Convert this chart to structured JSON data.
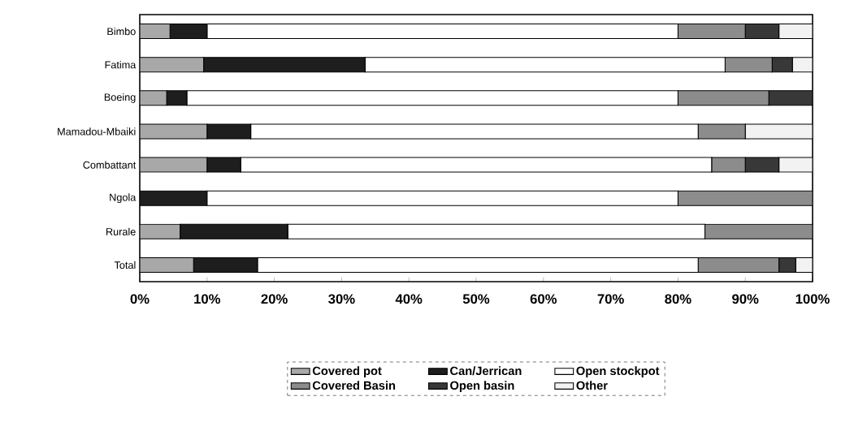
{
  "chart_data": {
    "type": "bar",
    "orientation": "horizontal",
    "stacked": true,
    "categories": [
      "Bimbo",
      "Fatima",
      "Boeing",
      "Mamadou-Mbaiki",
      "Combattant",
      "Ngola",
      "Rurale",
      "Total"
    ],
    "series": [
      {
        "name": "Covered pot",
        "color": "#a8a8a8",
        "values": [
          4.5,
          9.5,
          4,
          10,
          10,
          0,
          6,
          8
        ]
      },
      {
        "name": "Can/Jerrican",
        "color": "#1e1e1e",
        "values": [
          5.5,
          24,
          3,
          6.5,
          5,
          10,
          16,
          9.5
        ]
      },
      {
        "name": "Open stockpot",
        "color": "#ffffff",
        "values": [
          70,
          53.5,
          73,
          66.5,
          70,
          70,
          62,
          65.5
        ]
      },
      {
        "name": "Covered Basin",
        "color": "#8c8c8c",
        "values": [
          10,
          7,
          13.5,
          7,
          5,
          20,
          16,
          12
        ]
      },
      {
        "name": "Open basin",
        "color": "#383838",
        "values": [
          5,
          3,
          6.5,
          0,
          5,
          0,
          0,
          2.5
        ]
      },
      {
        "name": "Other",
        "color": "#f2f2f2",
        "values": [
          5,
          3,
          0,
          10,
          5,
          0,
          0,
          2.5
        ]
      }
    ],
    "xlim": [
      0,
      100
    ],
    "xticks": [
      {
        "value": 0,
        "label": "0%"
      },
      {
        "value": 10,
        "label": "10%"
      },
      {
        "value": 20,
        "label": "20%"
      },
      {
        "value": 30,
        "label": "30%"
      },
      {
        "value": 40,
        "label": "40%"
      },
      {
        "value": 50,
        "label": "50%"
      },
      {
        "value": 60,
        "label": "60%"
      },
      {
        "value": 70,
        "label": "70%"
      },
      {
        "value": 80,
        "label": "80%"
      },
      {
        "value": 90,
        "label": "90%"
      },
      {
        "value": 100,
        "label": "100%"
      }
    ],
    "legend": "bottom"
  }
}
